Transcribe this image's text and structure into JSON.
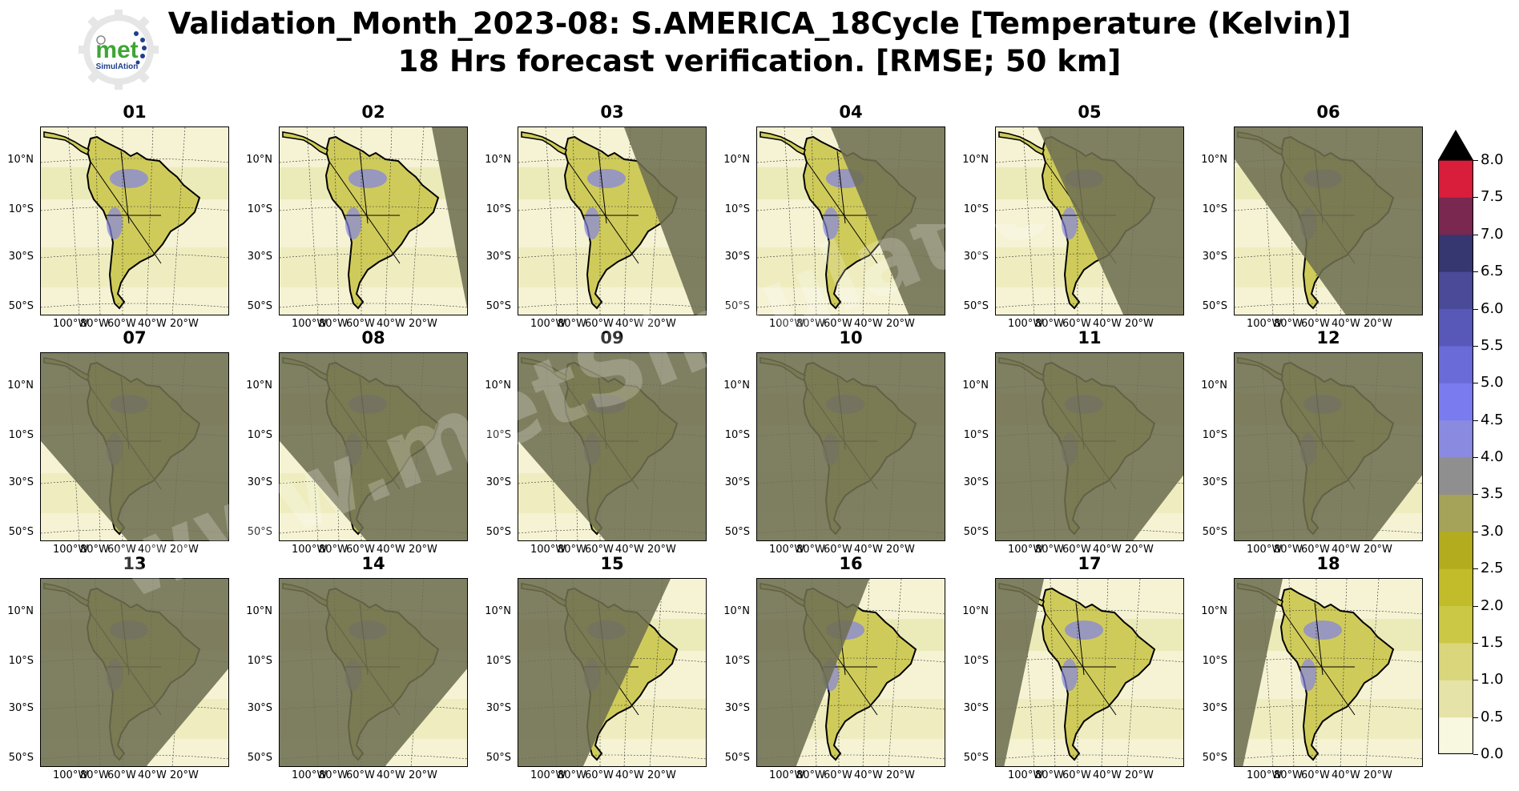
{
  "title_line1": "Validation_Month_2023-08: S.AMERICA_18Cycle [Temperature (Kelvin)]",
  "title_line2": "18 Hrs forecast verification.  [RMSE; 50 km]",
  "logo": {
    "word": "met",
    "sub": "SimulAtion"
  },
  "watermark": "www.metSimulation.com",
  "chart_data": {
    "type": "heatmap",
    "title": "Validation_Month_2023-08: S.AMERICA_18Cycle [Temperature (Kelvin)] 18 Hrs forecast verification.  [RMSE; 50 km]",
    "variable": "Temperature (Kelvin)",
    "metric": "RMSE",
    "resolution": "50 km",
    "panels": [
      "01",
      "02",
      "03",
      "04",
      "05",
      "06",
      "07",
      "08",
      "09",
      "10",
      "11",
      "12",
      "13",
      "14",
      "15",
      "16",
      "17",
      "18"
    ],
    "lat_ticks": [
      "10°N",
      "10°S",
      "30°S",
      "50°S"
    ],
    "lon_ticks": [
      "100°W",
      "80°W",
      "60°W",
      "40°W",
      "20°W"
    ],
    "colorbar": {
      "min": 0.0,
      "max": 8.0,
      "step": 0.5,
      "extend": "max",
      "ticks": [
        "0.0",
        "0.5",
        "1.0",
        "1.5",
        "2.0",
        "2.5",
        "3.0",
        "3.5",
        "4.0",
        "4.5",
        "5.0",
        "5.5",
        "6.0",
        "6.5",
        "7.0",
        "7.5",
        "8.0"
      ],
      "colors": [
        "#f8f7e0",
        "#e5e3a8",
        "#d9d67c",
        "#cbc845",
        "#c2bc2a",
        "#b3ac1f",
        "#a5a25a",
        "#8f8f8f",
        "#8a8ae0",
        "#7b7bf0",
        "#6a6ad8",
        "#5858b8",
        "#4a4a98",
        "#363670",
        "#7a2850",
        "#d81e3a",
        "#8a0e18"
      ],
      "over_color": "#000000"
    },
    "panel_shading": [
      {
        "label": "01",
        "night": "none"
      },
      {
        "label": "02",
        "night": "right-edge"
      },
      {
        "label": "03",
        "night": "right"
      },
      {
        "label": "04",
        "night": "right-half"
      },
      {
        "label": "05",
        "night": "most-right"
      },
      {
        "label": "06",
        "night": "most"
      },
      {
        "label": "07",
        "night": "most-except-bottom-left"
      },
      {
        "label": "08",
        "night": "most-except-bottom-left"
      },
      {
        "label": "09",
        "night": "most-except-bottom-left"
      },
      {
        "label": "10",
        "night": "all"
      },
      {
        "label": "11",
        "night": "most-except-bottom-right"
      },
      {
        "label": "12",
        "night": "most-except-bottom-right"
      },
      {
        "label": "13",
        "night": "left-most"
      },
      {
        "label": "14",
        "night": "left-most"
      },
      {
        "label": "15",
        "night": "left-half"
      },
      {
        "label": "16",
        "night": "left"
      },
      {
        "label": "17",
        "night": "left-edge"
      },
      {
        "label": "18",
        "night": "left-edge"
      }
    ]
  }
}
